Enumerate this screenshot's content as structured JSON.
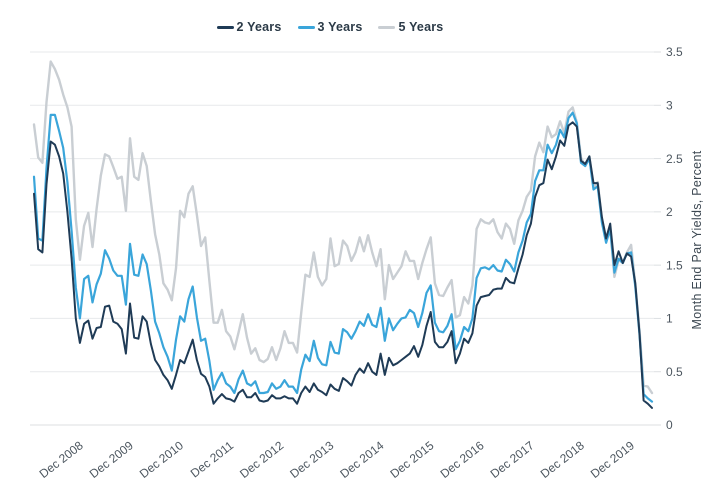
{
  "chart_data": {
    "type": "line",
    "title": "",
    "xlabel": "",
    "ylabel": "Month End Par Yields, Percent",
    "ylim": [
      0,
      3.5
    ],
    "y_ticks": [
      0,
      0.5,
      1,
      1.5,
      2,
      2.5,
      3,
      3.5
    ],
    "y_tick_labels": [
      "0",
      "0.5",
      "1",
      "1.5",
      "2",
      "2.5",
      "3",
      "3.5"
    ],
    "x_frequency": "monthly",
    "x_start": "Jan 2008",
    "x_end": "May 2020",
    "x_tick_labels": [
      "Dec 2008",
      "Dec 2009",
      "Dec 2010",
      "Dec 2011",
      "Dec 2012",
      "Dec 2013",
      "Dec 2014",
      "Dec 2015",
      "Dec 2016",
      "Dec 2017",
      "Dec 2018",
      "Dec 2019"
    ],
    "x_tick_indices": [
      11,
      23,
      35,
      47,
      59,
      71,
      83,
      95,
      107,
      119,
      131,
      143
    ],
    "grid": "horizontal",
    "legend_position": "top-center",
    "series": [
      {
        "name": "2 Years",
        "color": "#1f3b56",
        "values": [
          2.17,
          1.65,
          1.62,
          2.26,
          2.66,
          2.63,
          2.52,
          2.36,
          2.0,
          1.56,
          1.0,
          0.77,
          0.95,
          0.98,
          0.81,
          0.91,
          0.92,
          1.11,
          1.12,
          0.97,
          0.95,
          0.9,
          0.67,
          1.14,
          0.82,
          0.81,
          1.02,
          0.97,
          0.76,
          0.61,
          0.55,
          0.47,
          0.42,
          0.34,
          0.47,
          0.61,
          0.58,
          0.69,
          0.8,
          0.61,
          0.48,
          0.45,
          0.36,
          0.2,
          0.25,
          0.29,
          0.25,
          0.24,
          0.22,
          0.3,
          0.33,
          0.26,
          0.26,
          0.3,
          0.23,
          0.22,
          0.23,
          0.28,
          0.25,
          0.25,
          0.27,
          0.25,
          0.25,
          0.2,
          0.3,
          0.36,
          0.31,
          0.39,
          0.33,
          0.31,
          0.28,
          0.38,
          0.34,
          0.32,
          0.44,
          0.41,
          0.37,
          0.47,
          0.53,
          0.49,
          0.58,
          0.5,
          0.47,
          0.67,
          0.47,
          0.63,
          0.56,
          0.58,
          0.61,
          0.64,
          0.67,
          0.74,
          0.64,
          0.75,
          0.93,
          1.06,
          0.78,
          0.73,
          0.73,
          0.78,
          0.88,
          0.58,
          0.67,
          0.81,
          0.77,
          0.86,
          1.12,
          1.2,
          1.21,
          1.22,
          1.27,
          1.28,
          1.28,
          1.38,
          1.34,
          1.33,
          1.47,
          1.6,
          1.78,
          1.89,
          2.14,
          2.25,
          2.27,
          2.49,
          2.4,
          2.52,
          2.67,
          2.62,
          2.81,
          2.84,
          2.8,
          2.48,
          2.45,
          2.52,
          2.27,
          2.27,
          1.95,
          1.75,
          1.89,
          1.5,
          1.63,
          1.52,
          1.61,
          1.58,
          1.33,
          0.86,
          0.23,
          0.2,
          0.16
        ]
      },
      {
        "name": "3 Years",
        "color": "#3aa5da",
        "values": [
          2.33,
          1.75,
          1.73,
          2.41,
          2.91,
          2.91,
          2.76,
          2.6,
          2.28,
          1.82,
          1.29,
          1.0,
          1.37,
          1.4,
          1.15,
          1.32,
          1.42,
          1.64,
          1.56,
          1.45,
          1.4,
          1.4,
          1.13,
          1.7,
          1.41,
          1.4,
          1.6,
          1.51,
          1.26,
          0.97,
          0.86,
          0.73,
          0.64,
          0.51,
          0.8,
          1.02,
          0.97,
          1.18,
          1.3,
          1.01,
          0.79,
          0.81,
          0.6,
          0.33,
          0.42,
          0.49,
          0.39,
          0.36,
          0.3,
          0.43,
          0.51,
          0.39,
          0.37,
          0.41,
          0.3,
          0.3,
          0.31,
          0.39,
          0.34,
          0.36,
          0.42,
          0.36,
          0.36,
          0.3,
          0.52,
          0.66,
          0.6,
          0.79,
          0.63,
          0.57,
          0.56,
          0.78,
          0.68,
          0.67,
          0.9,
          0.87,
          0.81,
          0.88,
          0.97,
          0.93,
          1.04,
          0.94,
          0.92,
          1.1,
          0.79,
          1.0,
          0.89,
          0.95,
          1.0,
          1.01,
          1.08,
          1.05,
          0.92,
          1.05,
          1.24,
          1.31,
          0.96,
          0.88,
          0.87,
          0.93,
          1.04,
          0.71,
          0.79,
          0.92,
          0.88,
          1.0,
          1.38,
          1.47,
          1.48,
          1.46,
          1.5,
          1.45,
          1.44,
          1.55,
          1.51,
          1.44,
          1.62,
          1.73,
          1.9,
          1.98,
          2.29,
          2.39,
          2.39,
          2.63,
          2.55,
          2.63,
          2.77,
          2.7,
          2.88,
          2.93,
          2.83,
          2.46,
          2.43,
          2.5,
          2.21,
          2.24,
          1.9,
          1.71,
          1.84,
          1.43,
          1.56,
          1.52,
          1.61,
          1.62,
          1.3,
          0.85,
          0.29,
          0.25,
          0.22
        ]
      },
      {
        "name": "5 Years",
        "color": "#c9ced3",
        "values": [
          2.82,
          2.51,
          2.46,
          3.03,
          3.41,
          3.34,
          3.24,
          3.1,
          2.98,
          2.8,
          1.93,
          1.55,
          1.87,
          1.99,
          1.67,
          2.03,
          2.34,
          2.54,
          2.52,
          2.42,
          2.31,
          2.33,
          2.01,
          2.69,
          2.33,
          2.3,
          2.55,
          2.43,
          2.1,
          1.79,
          1.6,
          1.33,
          1.27,
          1.17,
          1.47,
          2.01,
          1.95,
          2.17,
          2.24,
          1.97,
          1.68,
          1.76,
          1.35,
          0.96,
          0.96,
          1.08,
          0.88,
          0.83,
          0.71,
          0.87,
          1.04,
          0.82,
          0.67,
          0.72,
          0.61,
          0.59,
          0.62,
          0.73,
          0.61,
          0.72,
          0.88,
          0.77,
          0.77,
          0.68,
          1.05,
          1.41,
          1.39,
          1.62,
          1.39,
          1.31,
          1.37,
          1.75,
          1.49,
          1.51,
          1.73,
          1.68,
          1.54,
          1.62,
          1.76,
          1.63,
          1.78,
          1.62,
          1.49,
          1.65,
          1.18,
          1.5,
          1.37,
          1.43,
          1.49,
          1.63,
          1.54,
          1.54,
          1.37,
          1.52,
          1.65,
          1.76,
          1.33,
          1.22,
          1.21,
          1.29,
          1.36,
          1.01,
          1.03,
          1.2,
          1.14,
          1.31,
          1.84,
          1.93,
          1.9,
          1.89,
          1.93,
          1.81,
          1.75,
          1.89,
          1.84,
          1.7,
          1.92,
          2.01,
          2.14,
          2.2,
          2.52,
          2.65,
          2.56,
          2.8,
          2.7,
          2.73,
          2.85,
          2.74,
          2.94,
          2.98,
          2.84,
          2.51,
          2.43,
          2.52,
          2.23,
          2.28,
          1.93,
          1.76,
          1.84,
          1.39,
          1.55,
          1.52,
          1.62,
          1.69,
          1.32,
          0.89,
          0.37,
          0.36,
          0.3
        ]
      }
    ]
  },
  "colors": {
    "background": "#ffffff",
    "grid": "#e7e9eb",
    "axis_line": "#dcdfe2",
    "tick_text": "#4c565f",
    "legend_text": "#2b3a47"
  }
}
